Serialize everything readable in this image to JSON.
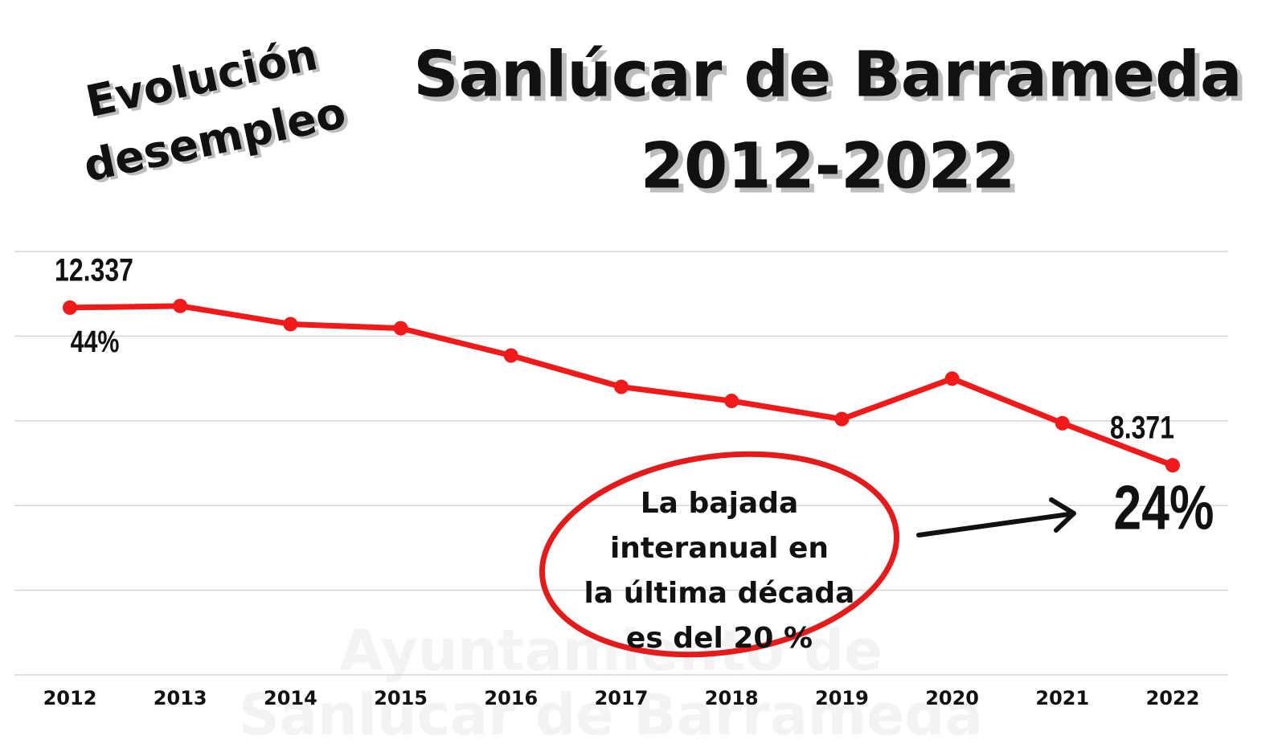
{
  "chart_data": {
    "type": "line",
    "title": [
      "Sanlúcar de Barrameda",
      "2012-2022"
    ],
    "subtitle": [
      "Evolución",
      "desempleo"
    ],
    "watermark": [
      "Ayuntamiento de",
      "Sanlúcar de Barrameda"
    ],
    "categories": [
      "2012",
      "2013",
      "2014",
      "2015",
      "2016",
      "2017",
      "2018",
      "2019",
      "2020",
      "2021",
      "2022"
    ],
    "values": [
      12337,
      12379,
      11922,
      11818,
      11133,
      10344,
      9990,
      9534,
      10551,
      9430,
      8371
    ],
    "value_labels": [
      "12.337",
      null,
      null,
      null,
      null,
      null,
      null,
      null,
      null,
      null,
      "8.371"
    ],
    "color": "#f01a1a",
    "ylim": [
      3100,
      13750
    ],
    "yticks": [
      3100,
      5230,
      7360,
      9490,
      11620,
      13750
    ],
    "grid": true,
    "annotations": {
      "start_change": "44%",
      "end_change": "24%",
      "note": [
        "La bajada",
        "interanual en",
        "la última década",
        "es del 20 %"
      ]
    }
  }
}
